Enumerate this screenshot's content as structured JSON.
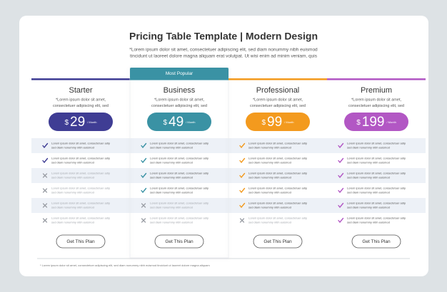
{
  "header": {
    "title": "Pricing Table Template | Modern Design",
    "subtitle": [
      "*Lorem ipsum dolor sit amet, consectetuer adipiscing elit, sed diam nonummy nibh euismod",
      "tincidunt ut laoreet dolore magna aliquam erat volutpat. Ut wisi enim ad minim veniam, quis"
    ]
  },
  "plans": [
    {
      "name": "Starter",
      "color": "#3f3d94",
      "description": [
        "*Lorem ipsum dolor sit amet,",
        "consectetuer adipiscing elit, sed"
      ],
      "price": {
        "currency": "$",
        "amount": "29",
        "period": "/ Month"
      },
      "features": [
        {
          "included": true,
          "lines": [
            "Lorem ipsum dolor sit amet, consectetuer adip",
            "sed diam nonummy nibh euismod"
          ]
        },
        {
          "included": true,
          "lines": [
            "Lorem ipsum dolor sit amet, consectetuer adip",
            "sed diam nonummy nibh euismod"
          ]
        },
        {
          "included": false,
          "lines": [
            "Lorem ipsum dolor sit amet, consectetuer adip",
            "sed diam nonummy nibh euismod"
          ]
        },
        {
          "included": false,
          "lines": [
            "Lorem ipsum dolor sit amet, consectetuer adip",
            "sed diam nonummy nibh euismod"
          ]
        },
        {
          "included": false,
          "lines": [
            "Lorem ipsum dolor sit amet, consectetuer adip",
            "sed diam nonummy nibh euismod"
          ]
        },
        {
          "included": false,
          "lines": [
            "Lorem ipsum dolor sit amet, consectetuer adip",
            "sed diam nonummy nibh euismod"
          ]
        }
      ],
      "button": "Get This Plan"
    },
    {
      "name": "Business",
      "color": "#3a92a4",
      "badge": "Most Popular",
      "description": [
        "*Lorem ipsum dolor sit amet,",
        "consectetuer adipiscing elit, sed"
      ],
      "price": {
        "currency": "$",
        "amount": "49",
        "period": "/ Month"
      },
      "features": [
        {
          "included": true,
          "lines": [
            "Lorem ipsum dolor sit amet, consectetuer adip",
            "sed diam nonummy nibh euismod"
          ]
        },
        {
          "included": true,
          "lines": [
            "Lorem ipsum dolor sit amet, consectetuer adip",
            "sed diam nonummy nibh euismod"
          ]
        },
        {
          "included": true,
          "lines": [
            "Lorem ipsum dolor sit amet, consectetuer adip",
            "sed diam nonummy nibh euismod"
          ]
        },
        {
          "included": true,
          "lines": [
            "Lorem ipsum dolor sit amet, consectetuer adip",
            "sed diam nonummy nibh euismod"
          ]
        },
        {
          "included": false,
          "lines": [
            "Lorem ipsum dolor sit amet, consectetuer adip",
            "sed diam nonummy nibh euismod"
          ]
        },
        {
          "included": false,
          "lines": [
            "Lorem ipsum dolor sit amet, consectetuer adip",
            "sed diam nonummy nibh euismod"
          ]
        }
      ],
      "button": "Get This Plan"
    },
    {
      "name": "Professional",
      "color": "#f39a1e",
      "description": [
        "*Lorem ipsum dolor sit amet,",
        "consectetuer adipiscing elit, sed"
      ],
      "price": {
        "currency": "$",
        "amount": "99",
        "period": "/ Month"
      },
      "features": [
        {
          "included": true,
          "lines": [
            "Lorem ipsum dolor sit amet, consectetuer adip",
            "sed diam nonummy nibh euismod"
          ]
        },
        {
          "included": true,
          "lines": [
            "Lorem ipsum dolor sit amet, consectetuer adip",
            "sed diam nonummy nibh euismod"
          ]
        },
        {
          "included": true,
          "lines": [
            "Lorem ipsum dolor sit amet, consectetuer adip",
            "sed diam nonummy nibh euismod"
          ]
        },
        {
          "included": true,
          "lines": [
            "Lorem ipsum dolor sit amet, consectetuer adip",
            "sed diam nonummy nibh euismod"
          ]
        },
        {
          "included": true,
          "lines": [
            "Lorem ipsum dolor sit amet, consectetuer adip",
            "sed diam nonummy nibh euismod"
          ]
        },
        {
          "included": false,
          "lines": [
            "Lorem ipsum dolor sit amet, consectetuer adip",
            "sed diam nonummy nibh euismod"
          ]
        }
      ],
      "button": "Get This Plan"
    },
    {
      "name": "Premium",
      "color": "#b257c4",
      "description": [
        "*Lorem ipsum dolor sit amet,",
        "consectetuer adipiscing elit, sed"
      ],
      "price": {
        "currency": "$",
        "amount": "199",
        "period": "/ Month"
      },
      "features": [
        {
          "included": true,
          "lines": [
            "Lorem ipsum dolor sit amet, consectetuer adip",
            "sed diam nonummy nibh euismod"
          ]
        },
        {
          "included": true,
          "lines": [
            "Lorem ipsum dolor sit amet, consectetuer adip",
            "sed diam nonummy nibh euismod"
          ]
        },
        {
          "included": true,
          "lines": [
            "Lorem ipsum dolor sit amet, consectetuer adip",
            "sed diam nonummy nibh euismod"
          ]
        },
        {
          "included": true,
          "lines": [
            "Lorem ipsum dolor sit amet, consectetuer adip",
            "sed diam nonummy nibh euismod"
          ]
        },
        {
          "included": true,
          "lines": [
            "Lorem ipsum dolor sit amet, consectetuer adip",
            "sed diam nonummy nibh euismod"
          ]
        },
        {
          "included": true,
          "lines": [
            "Lorem ipsum dolor sit amet, consectetuer adip",
            "sed diam nonummy nibh euismod"
          ]
        }
      ],
      "button": "Get This Plan"
    }
  ],
  "footnote": "* Lorem ipsum dolor sit amet, consectetuer adipiscing elit, sed diam nonummy nibh euismod tincidunt ut laoreet dolore magna aliquam"
}
